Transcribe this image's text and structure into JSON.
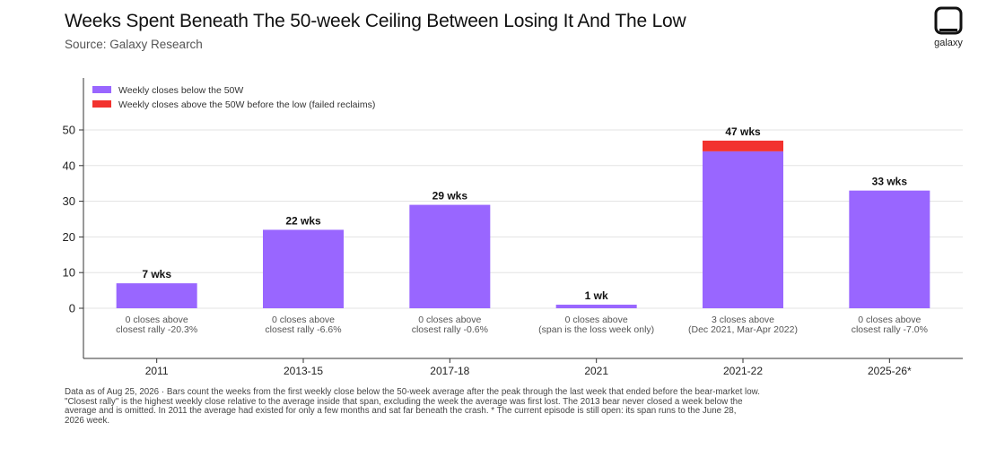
{
  "header": {
    "title": "Weeks Spent Beneath The 50-week Ceiling Between Losing It And The Low",
    "source": "Source: Galaxy Research",
    "brand": "galaxy"
  },
  "colors": {
    "below": "#9966FF",
    "above": "#F2322E",
    "grid": "#E3E3E3",
    "axis": "#333333"
  },
  "chart_data": {
    "type": "bar",
    "stacked": true,
    "categories": [
      "2011",
      "2013-15",
      "2017-18",
      "2021",
      "2021-22",
      "2025-26*"
    ],
    "series": [
      {
        "name": "Weekly closes below the 50W",
        "values": [
          7,
          22,
          29,
          1,
          44,
          33
        ]
      },
      {
        "name": "Weekly closes above the 50W before the low (failed reclaims)",
        "values": [
          0,
          0,
          0,
          0,
          3,
          0
        ]
      }
    ],
    "data_labels": [
      "7 wks",
      "22 wks",
      "29 wks",
      "1 wk",
      "47 wks",
      "33 wks"
    ],
    "annotations": [
      [
        "0 closes above",
        "closest rally -20.3%"
      ],
      [
        "0 closes above",
        "closest rally -6.6%"
      ],
      [
        "0 closes above",
        "closest rally -0.6%"
      ],
      [
        "0 closes above",
        "(span is the loss week only)"
      ],
      [
        "3 closes above",
        "(Dec 2021, Mar-Apr 2022)"
      ],
      [
        "0 closes above",
        "closest rally -7.0%"
      ]
    ],
    "yticks": [
      0,
      10,
      20,
      30,
      40,
      50
    ],
    "ylim": [
      0,
      50
    ],
    "grid": true,
    "legend_position": "top-left"
  },
  "footnote": [
    "Data as of Aug 25, 2026 · Bars count the weeks from the first weekly close below the 50-week average after the peak through the last week that ended before the bear-market low.",
    "\"Closest rally\" is the highest weekly close relative to the average inside that span, excluding the week the average was first lost. The 2013 bear never closed a week below the",
    "average and is omitted. In 2011 the average had existed for only a few months and sat far beneath the crash. * The current episode is still open: its span runs to the June 28,",
    "2026 week."
  ]
}
